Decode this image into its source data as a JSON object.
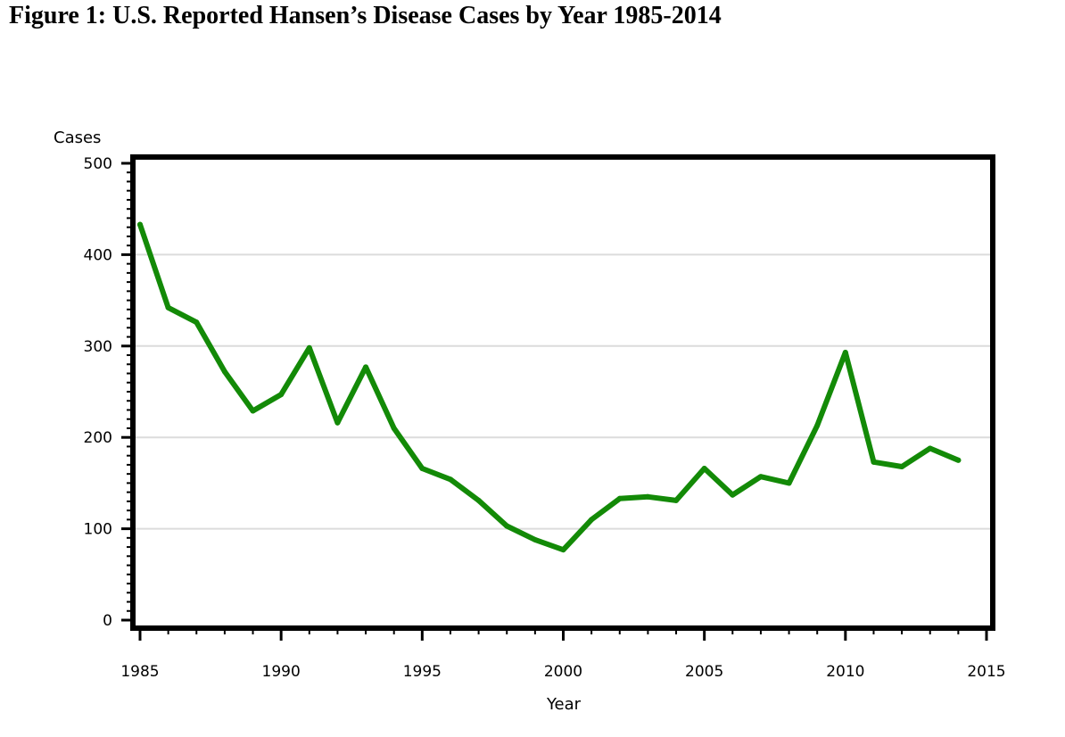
{
  "title": "Figure 1: U.S. Reported Hansen’s Disease Cases by Year 1985-2014",
  "chart_data": {
    "type": "line",
    "title": "Figure 1: U.S. Reported Hansen’s Disease Cases by Year 1985-2014",
    "xlabel": "Year",
    "ylabel": "Cases",
    "xlim": [
      1985,
      2015
    ],
    "ylim": [
      0,
      500
    ],
    "xticks": [
      "1985",
      "1990",
      "1995",
      "2000",
      "2005",
      "2010",
      "2015"
    ],
    "yticks": [
      "0",
      "100",
      "200",
      "300",
      "400",
      "500"
    ],
    "grid": true,
    "line_color": "#138a07",
    "x": [
      1985,
      1986,
      1987,
      1988,
      1989,
      1990,
      1991,
      1992,
      1993,
      1994,
      1995,
      1996,
      1997,
      1998,
      1999,
      2000,
      2001,
      2002,
      2003,
      2004,
      2005,
      2006,
      2007,
      2008,
      2009,
      2010,
      2011,
      2012,
      2013,
      2014
    ],
    "series": [
      {
        "values": [
          433,
          342,
          326,
          272,
          229,
          247,
          298,
          216,
          277,
          210,
          166,
          154,
          131,
          103,
          88,
          77,
          110,
          133,
          135,
          131,
          166,
          137,
          157,
          150,
          213,
          293,
          173,
          168,
          188,
          175
        ]
      }
    ]
  }
}
